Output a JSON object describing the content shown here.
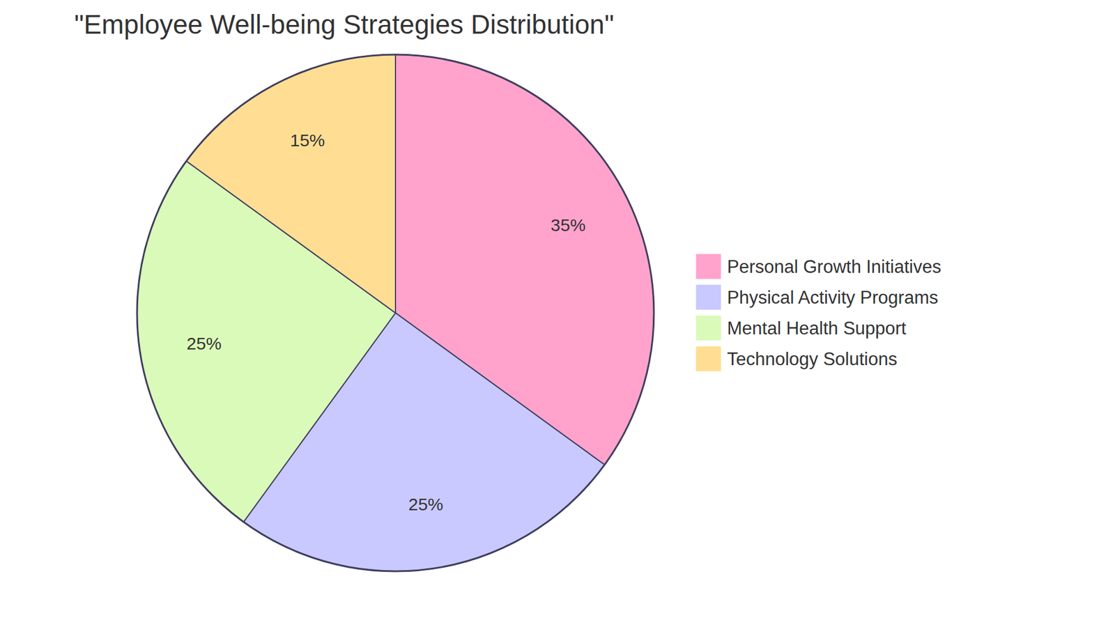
{
  "chart_data": {
    "type": "pie",
    "title": "\"Employee Well-being Strategies Distribution\"",
    "categories": [
      "Personal Growth Initiatives",
      "Physical Activity Programs",
      "Mental Health Support",
      "Technology Solutions"
    ],
    "values": [
      35,
      25,
      25,
      15
    ],
    "value_labels": [
      "35%",
      "25%",
      "25%",
      "15%"
    ],
    "colors": [
      "#ffa3cd",
      "#c9c9ff",
      "#dafab9",
      "#ffde94"
    ],
    "data_labels": true,
    "legend": "right"
  }
}
